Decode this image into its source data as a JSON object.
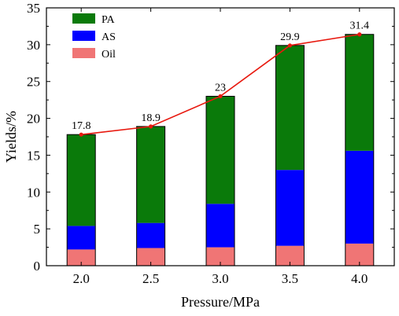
{
  "chart_data": {
    "type": "bar",
    "stacked": true,
    "xlabel": "Pressure/MPa",
    "ylabel": "Yields/%",
    "categories": [
      "2.0",
      "2.5",
      "3.0",
      "3.5",
      "4.0"
    ],
    "ylim": [
      0,
      35
    ],
    "yticks": [
      0,
      5,
      10,
      15,
      20,
      25,
      30,
      35
    ],
    "series": [
      {
        "name": "Oil",
        "color": "#f07575",
        "values": [
          2.2,
          2.4,
          2.5,
          2.7,
          3.0
        ]
      },
      {
        "name": "AS",
        "color": "#0000ff",
        "values": [
          3.2,
          3.4,
          5.9,
          10.3,
          12.6
        ]
      },
      {
        "name": "PA",
        "color": "#0a7a0a",
        "values": [
          12.4,
          13.1,
          14.6,
          16.9,
          15.8
        ]
      }
    ],
    "line": {
      "color": "#e8190f",
      "values": [
        17.8,
        18.9,
        23,
        29.9,
        31.4
      ],
      "labels": [
        "17.8",
        "18.9",
        "23",
        "29.9",
        "31.4"
      ]
    },
    "legend": {
      "position": "top-left",
      "order": [
        "PA",
        "AS",
        "Oil"
      ]
    },
    "grid": false
  }
}
